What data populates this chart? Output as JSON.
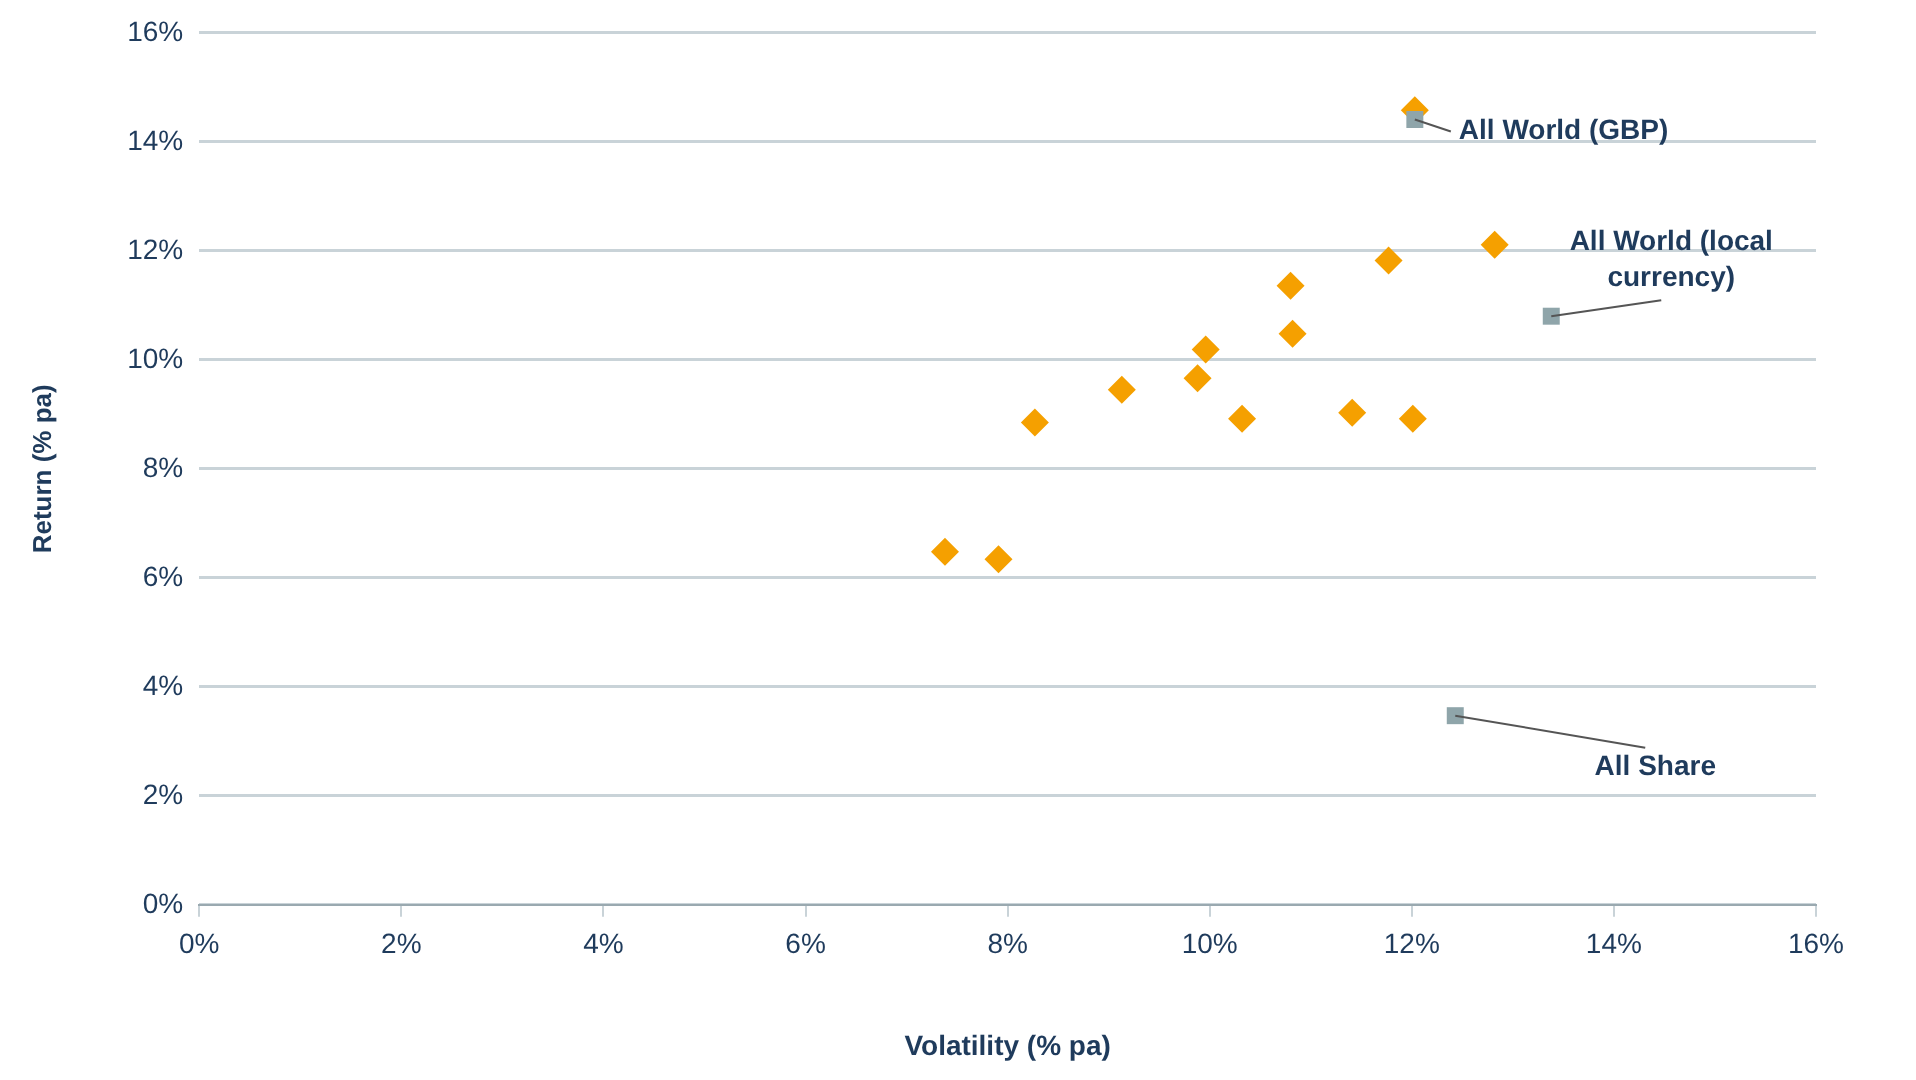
{
  "chart_data": {
    "type": "scatter",
    "xlabel": "Volatility (% pa)",
    "ylabel": "Return (% pa)",
    "series": [
      {
        "color": "#f5a000",
        "marker": "diamond",
        "x": [
          7.38,
          7.91,
          8.27,
          9.13,
          9.88,
          9.96,
          10.32,
          10.8,
          10.82,
          11.41,
          11.77,
          12.01,
          12.03,
          12.82
        ],
        "values": [
          6.48,
          6.34,
          8.85,
          9.45,
          9.66,
          10.19,
          8.92,
          11.36,
          10.48,
          9.03,
          11.82,
          8.92,
          14.58,
          12.11
        ]
      },
      {
        "color": "#8fa5aa",
        "marker": "square",
        "x": [
          12.03,
          13.38,
          12.43
        ],
        "values": [
          14.41,
          10.8,
          3.47
        ]
      }
    ],
    "annotations": [
      {
        "text": "All World (GBP)",
        "x": 12.03,
        "y": 14.41
      },
      {
        "text": "All World (local currency)",
        "x": 13.38,
        "y": 10.8
      },
      {
        "text": "All Share",
        "x": 12.43,
        "y": 3.47
      }
    ],
    "xlim": [
      0,
      16
    ],
    "ylim": [
      0,
      16
    ],
    "xticks": [
      {
        "value": 0,
        "label": "0%"
      },
      {
        "value": 2,
        "label": "2%"
      },
      {
        "value": 4,
        "label": "4%"
      },
      {
        "value": 6,
        "label": "6%"
      },
      {
        "value": 8,
        "label": "8%"
      },
      {
        "value": 10,
        "label": "10%"
      },
      {
        "value": 12,
        "label": "12%"
      },
      {
        "value": 14,
        "label": "14%"
      },
      {
        "value": 16,
        "label": "16%"
      }
    ],
    "yticks": [
      {
        "value": 0,
        "label": "0%"
      },
      {
        "value": 2,
        "label": "2%"
      },
      {
        "value": 4,
        "label": "4%"
      },
      {
        "value": 6,
        "label": "6%"
      },
      {
        "value": 8,
        "label": "8%"
      },
      {
        "value": 10,
        "label": "10%"
      },
      {
        "value": 12,
        "label": "12%"
      },
      {
        "value": 14,
        "label": "14%"
      },
      {
        "value": 16,
        "label": "16%"
      }
    ],
    "grid": "y",
    "legend": false
  }
}
